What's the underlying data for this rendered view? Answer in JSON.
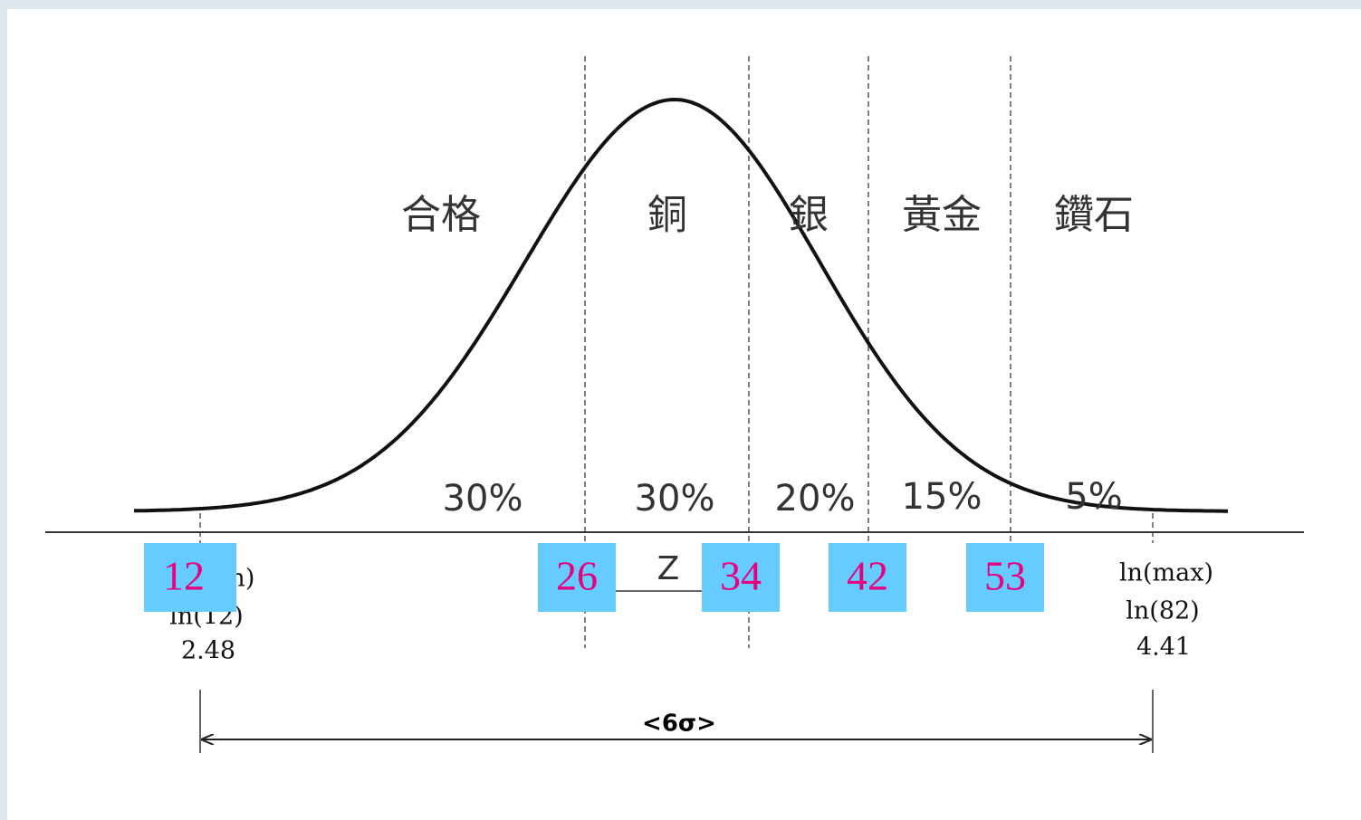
{
  "zones": [
    {
      "name": "合格",
      "share": "30%"
    },
    {
      "name": "銅",
      "share": "30%"
    },
    {
      "name": "銀",
      "share": "20%"
    },
    {
      "name": "黃金",
      "share": "15%"
    },
    {
      "name": "鑽石",
      "share": "5%"
    }
  ],
  "thresholds": [
    "12",
    "26",
    "34",
    "42",
    "53"
  ],
  "left_bound": [
    "ln(min)",
    "ln(12)",
    "2.48"
  ],
  "right_bound": [
    "ln(max)",
    "ln(82)",
    "4.41"
  ],
  "z_label": "Z",
  "span_label": "<6σ>"
}
